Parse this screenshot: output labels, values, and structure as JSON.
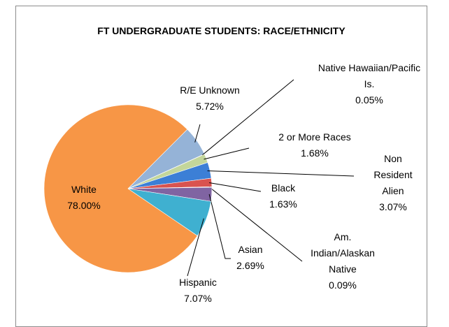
{
  "chart_data": {
    "type": "pie",
    "title": "FT UNDERGRADUATE STUDENTS:  RACE/ETHNICITY",
    "categories": [
      "R/E Unknown",
      "Native Hawaiian/Pacific Is.",
      "2 or More  Races",
      "Non Resident Alien",
      "Black",
      "Am. Indian/Alaskan Native",
      "Asian",
      "Hispanic",
      "White"
    ],
    "values": [
      5.72,
      0.05,
      1.68,
      3.07,
      1.63,
      0.09,
      2.69,
      7.07,
      78.0
    ],
    "value_labels": [
      "5.72%",
      "0.05%",
      "1.68%",
      "3.07%",
      "1.63%",
      "0.09%",
      "2.69%",
      "7.07%",
      "78.00%"
    ],
    "colors": [
      "#95b3d7",
      "#1f3864",
      "#c3d69b",
      "#3c7fd6",
      "#d9534f",
      "#2e4a7a",
      "#8064a2",
      "#3fb0d0",
      "#f79646"
    ]
  }
}
